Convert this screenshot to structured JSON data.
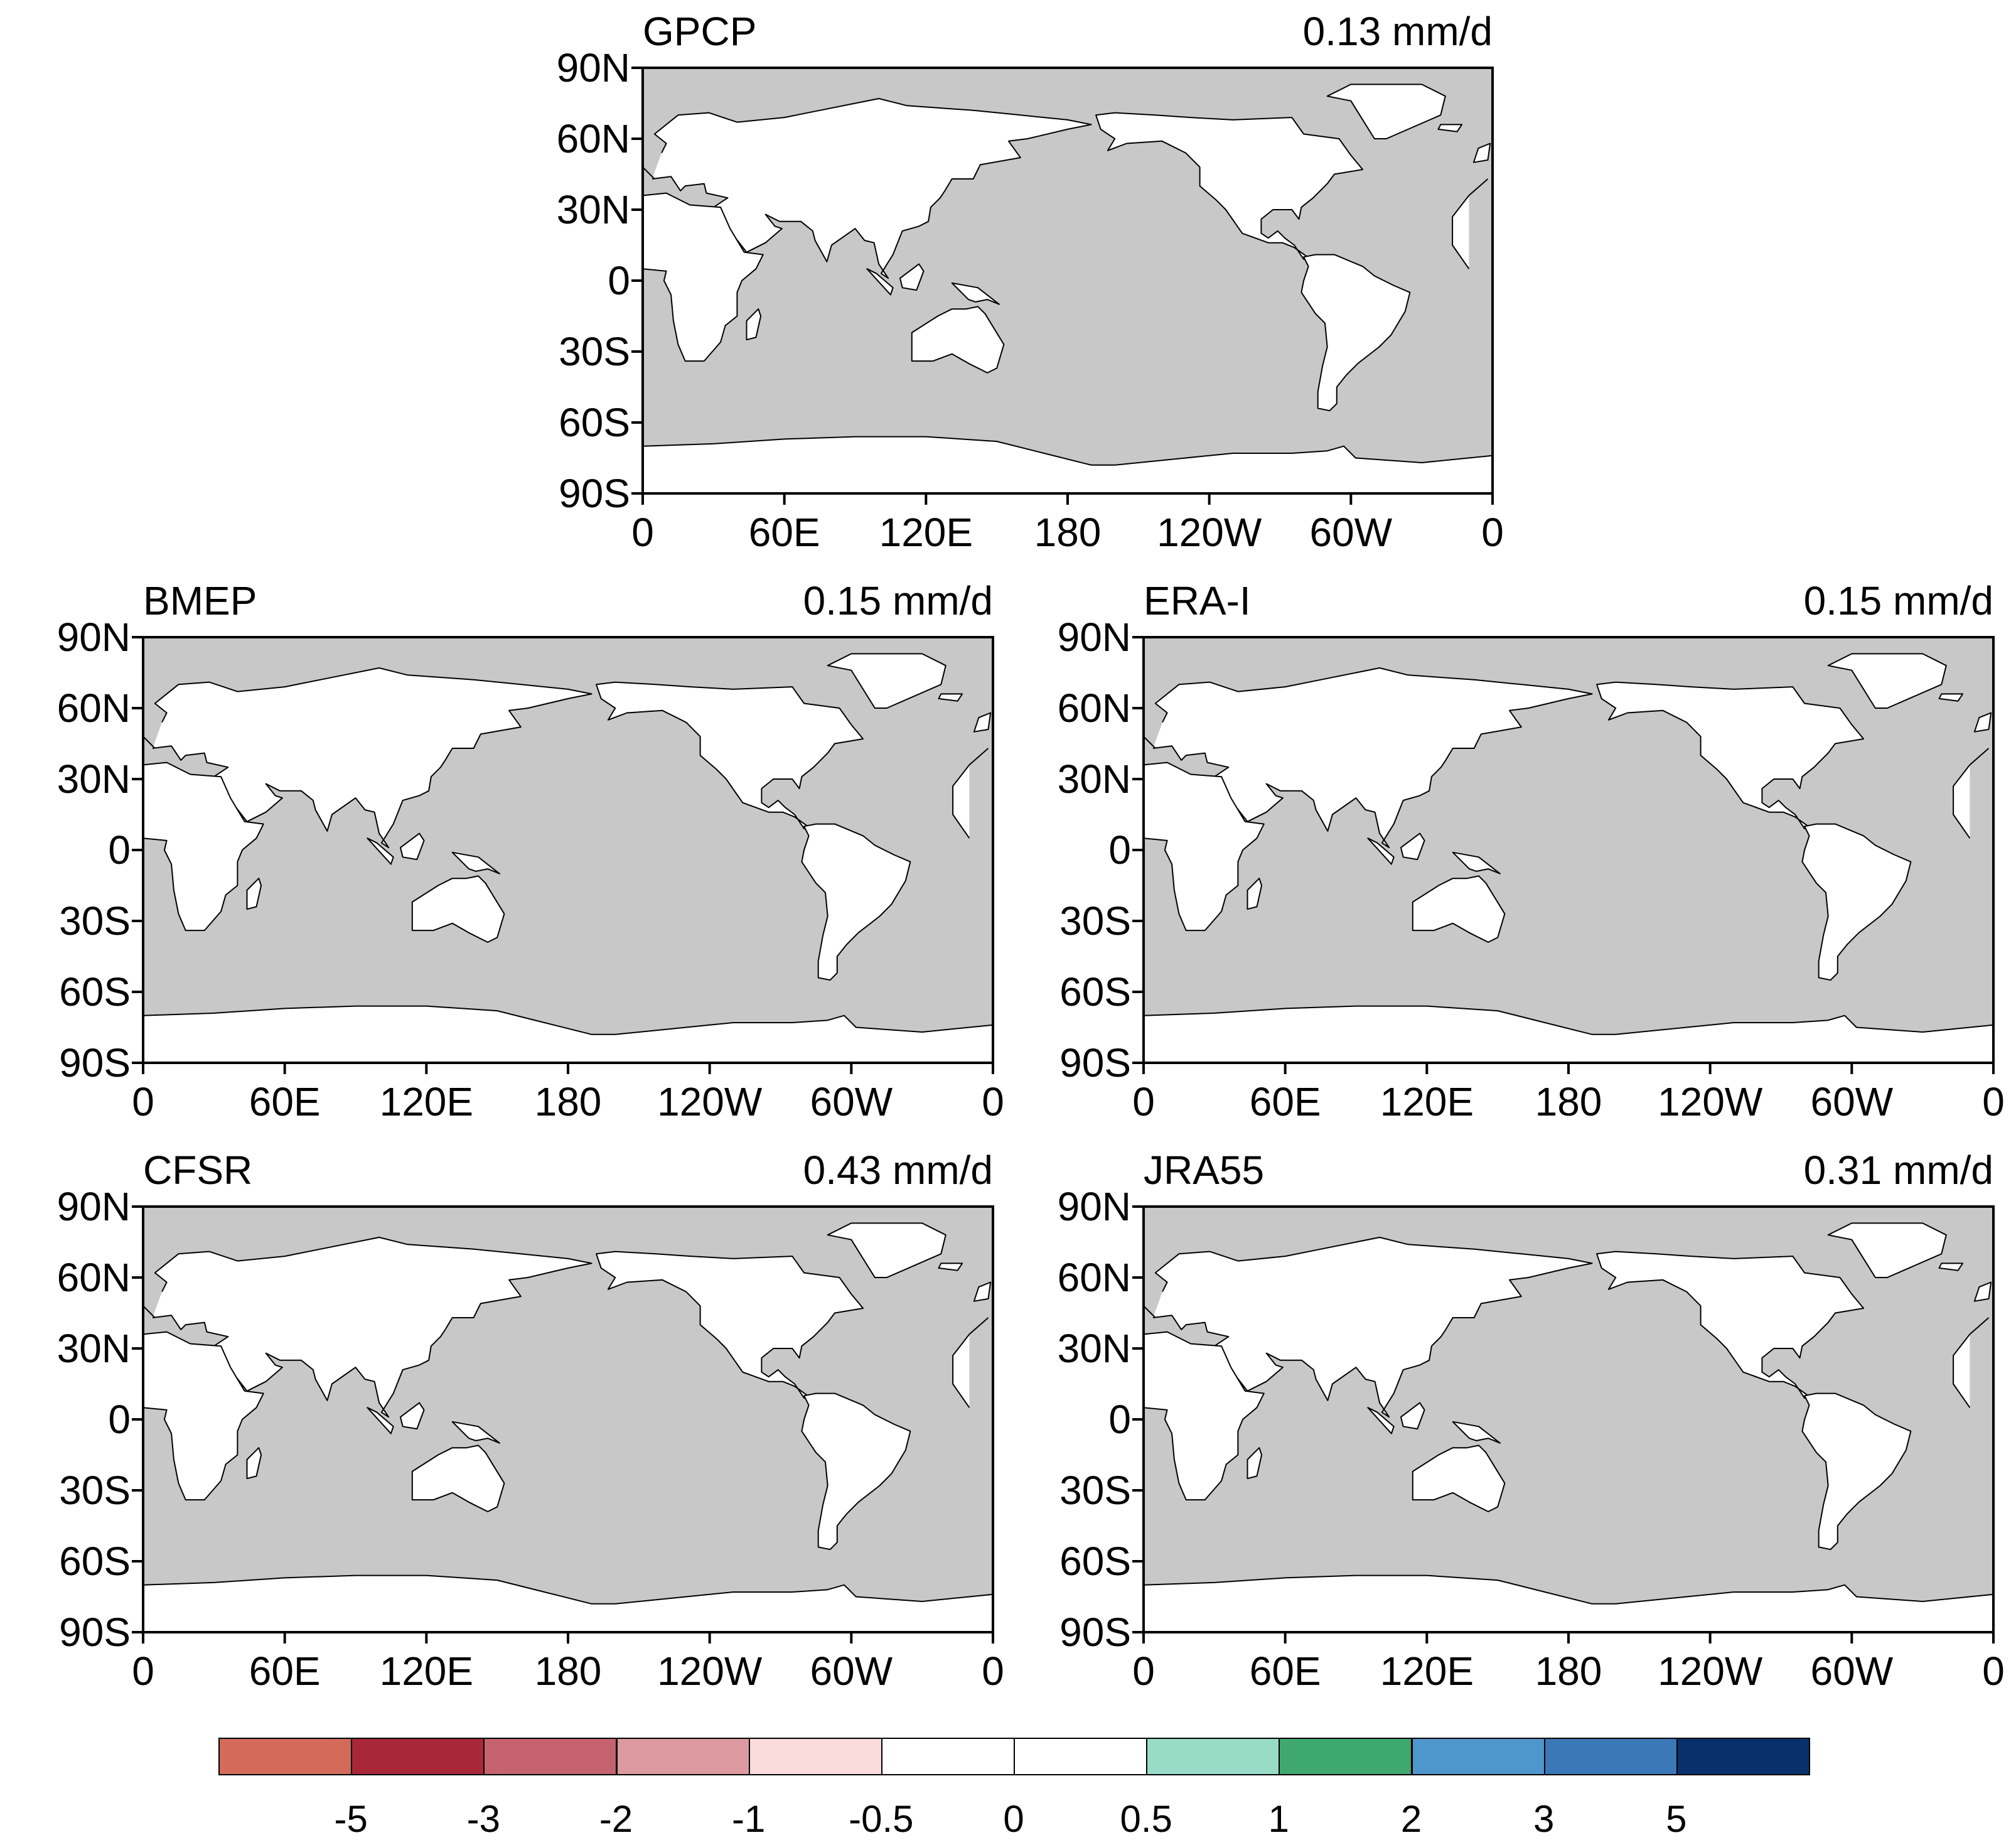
{
  "panels": [
    {
      "id": "gpcp",
      "title": "GPCP",
      "mean": "0.13 mm/d"
    },
    {
      "id": "bmep",
      "title": "BMEP",
      "mean": "0.15 mm/d"
    },
    {
      "id": "erai",
      "title": "ERA-I",
      "mean": "0.15 mm/d"
    },
    {
      "id": "cfsr",
      "title": "CFSR",
      "mean": "0.43 mm/d"
    },
    {
      "id": "jra55",
      "title": "JRA55",
      "mean": "0.31 mm/d"
    }
  ],
  "lat_ticks": [
    "90N",
    "60N",
    "30N",
    "0",
    "30S",
    "60S",
    "90S"
  ],
  "lon_ticks": [
    "0",
    "60E",
    "120E",
    "180",
    "120W",
    "60W",
    "0"
  ],
  "colorbar": {
    "colors": [
      "#d36a5a",
      "#a8283a",
      "#c4636f",
      "#dc9aa0",
      "#fbdcdd",
      "#ffffff",
      "#ffffff",
      "#98dcc6",
      "#3fa86e",
      "#4f96cc",
      "#3a78b8",
      "#08306b"
    ],
    "labels": [
      "-5",
      "-3",
      "-2",
      "-1",
      "-0.5",
      "0",
      "0.5",
      "1",
      "2",
      "3",
      "5"
    ]
  },
  "colors": {
    "ocean": "#c8c8c8",
    "land": "#ffffff",
    "coast": "#000000"
  }
}
